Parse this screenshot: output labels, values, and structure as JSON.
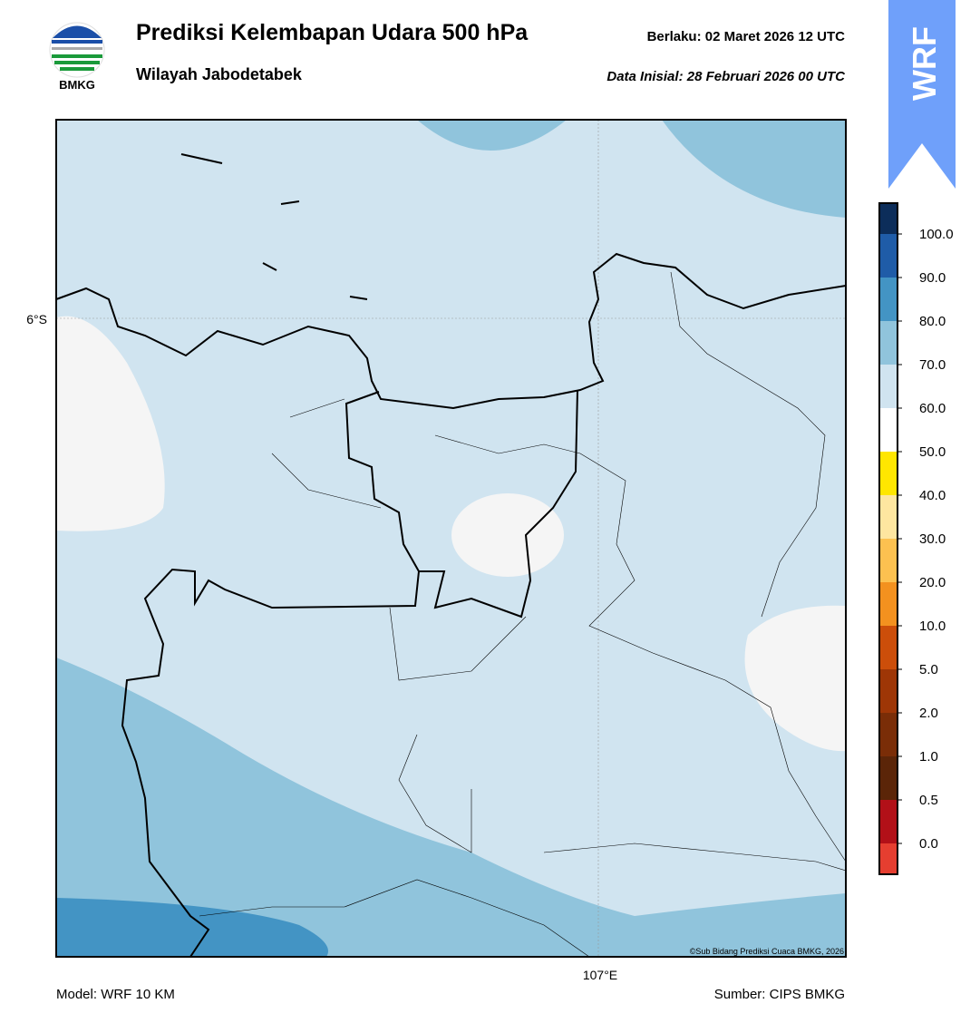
{
  "header": {
    "logo_text": "BMKG",
    "title": "Prediksi Kelembapan Udara 500 hPa",
    "subtitle": "Wilayah Jabodetabek",
    "valid": "Berlaku:  02 Maret 2026 12 UTC",
    "init": "Data Inisial:  28 Februari 2026 00 UTC",
    "badge": "WRF"
  },
  "map": {
    "lat_label": "6°S",
    "lon_label": "107°E",
    "credit": "©Sub Bidang Prediksi Cuaca BMKG, 2026"
  },
  "colorbar": {
    "labels": [
      "0.0",
      "0.5",
      "1.0",
      "2.0",
      "5.0",
      "10.0",
      "20.0",
      "30.0",
      "40.0",
      "50.0",
      "60.0",
      "70.0",
      "80.0",
      "90.0",
      "100.0"
    ]
  },
  "footer": {
    "model": "Model: WRF 10 KM",
    "source": "Sumber: CIPS BMKG"
  }
}
